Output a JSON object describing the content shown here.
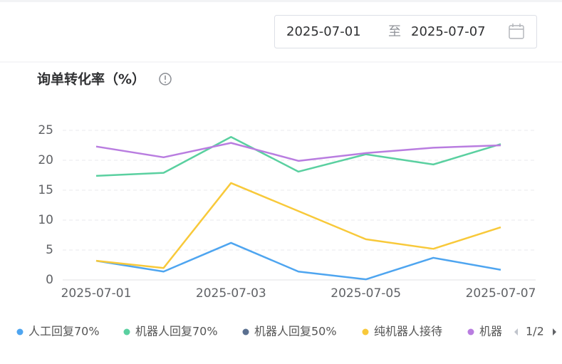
{
  "date_range": {
    "start": "2025-07-01",
    "separator": "至",
    "end": "2025-07-07"
  },
  "chart_data": {
    "type": "line",
    "title": "询单转化率（%）",
    "categories": [
      "2025-07-01",
      null,
      "2025-07-03",
      null,
      "2025-07-05",
      null,
      "2025-07-07"
    ],
    "series": [
      {
        "name": "人工回复70%",
        "color": "#4ea5f0",
        "values": [
          3.2,
          1.4,
          6.2,
          1.4,
          0.1,
          3.7,
          1.7
        ]
      },
      {
        "name": "机器人回复70%",
        "color": "#5ad0a0",
        "values": [
          17.4,
          17.9,
          23.9,
          18.1,
          21.0,
          19.3,
          22.7
        ]
      },
      {
        "name": "机器人回复50%",
        "color": "#5b7090",
        "values": [
          null,
          null,
          null,
          null,
          null,
          null,
          null
        ]
      },
      {
        "name": "纯机器人接待",
        "color": "#f8c93a",
        "values": [
          3.2,
          2.0,
          16.2,
          11.5,
          6.8,
          5.2,
          8.8
        ]
      },
      {
        "name": "机器",
        "color": "#b97de0",
        "values": [
          22.3,
          20.5,
          22.9,
          19.9,
          21.2,
          22.1,
          22.5
        ]
      }
    ],
    "ylim": [
      0,
      25
    ],
    "yticks": [
      0,
      5,
      10,
      15,
      20,
      25
    ],
    "grid": true,
    "legend_page": "1/2"
  }
}
